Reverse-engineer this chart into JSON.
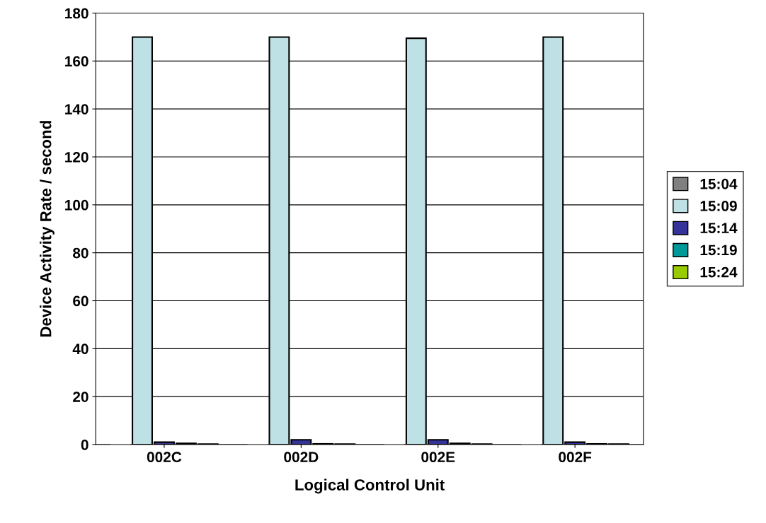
{
  "chart_data": {
    "type": "bar",
    "xlabel": "Logical Control Unit",
    "ylabel": "Device Activity Rate / second",
    "categories": [
      "002C",
      "002D",
      "002E",
      "002F"
    ],
    "series": [
      {
        "name": "15:04",
        "color": "#808080",
        "values": [
          0,
          0,
          0,
          0
        ]
      },
      {
        "name": "15:09",
        "color": "#bde1e4",
        "values": [
          170,
          170,
          169.5,
          170
        ]
      },
      {
        "name": "15:14",
        "color": "#333399",
        "values": [
          1,
          2,
          2,
          1
        ]
      },
      {
        "name": "15:19",
        "color": "#009999",
        "values": [
          0.5,
          0.3,
          0.5,
          0.3
        ]
      },
      {
        "name": "15:24",
        "color": "#99cc00",
        "values": [
          0.2,
          0.2,
          0.2,
          0.2
        ]
      }
    ],
    "ylim": [
      0,
      180
    ],
    "yticks": [
      0,
      20,
      40,
      60,
      80,
      100,
      120,
      140,
      160,
      180
    ],
    "grid": "y",
    "legend": "right"
  }
}
